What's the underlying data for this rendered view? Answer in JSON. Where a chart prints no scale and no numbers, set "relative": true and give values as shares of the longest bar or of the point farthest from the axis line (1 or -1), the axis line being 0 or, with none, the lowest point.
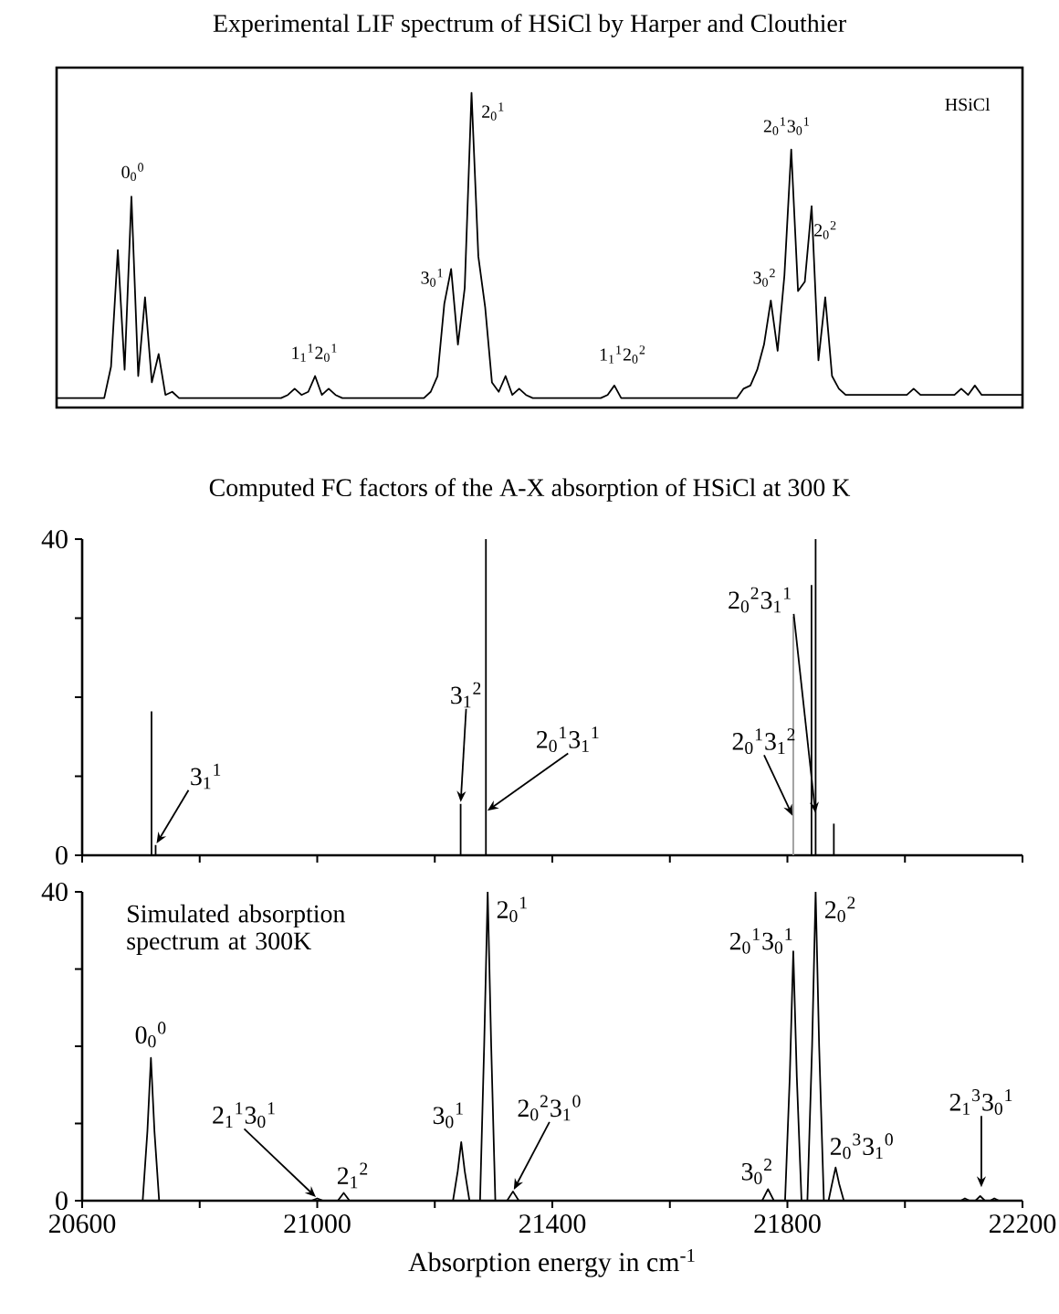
{
  "chart_data": [
    {
      "type": "line",
      "title": "Experimental LIF spectrum of HSiCl by Harper and Clouthier",
      "relative": true,
      "tick_labels": false,
      "color": "#000000",
      "categories": [
        null,
        null,
        null,
        null,
        null,
        null,
        null,
        null,
        null,
        null,
        null,
        null,
        null,
        null,
        null,
        null,
        null,
        null,
        null,
        null,
        null,
        null,
        null,
        null,
        null,
        null,
        null,
        null,
        null,
        null,
        null,
        null,
        null,
        null,
        null,
        null,
        null,
        null,
        null,
        null,
        null,
        null,
        null,
        null,
        null,
        null,
        null,
        null,
        null,
        null,
        null,
        null,
        null,
        null,
        null,
        null,
        null,
        null,
        null,
        null,
        null,
        null,
        null,
        null,
        null,
        null,
        null,
        null,
        null,
        null,
        null,
        null,
        null,
        null,
        null,
        null,
        null,
        null,
        null,
        null,
        null,
        null,
        null,
        null,
        null,
        null,
        null,
        null,
        null,
        null,
        null,
        null,
        null,
        null,
        null,
        null,
        null,
        null,
        null,
        null,
        null,
        null,
        null,
        null,
        null,
        null,
        null,
        null,
        null,
        null,
        null,
        null,
        null,
        null,
        null,
        null,
        null,
        null,
        null,
        null,
        null,
        null,
        null,
        null,
        null,
        null,
        null,
        null,
        null,
        null,
        null,
        null,
        null,
        null,
        null,
        null,
        null,
        null,
        null,
        null,
        null,
        null,
        null
      ],
      "values": [
        0.03,
        0.03,
        0.03,
        0.03,
        0.03,
        0.03,
        0.03,
        0.03,
        0.13,
        0.5,
        0.12,
        0.67,
        0.1,
        0.35,
        0.08,
        0.17,
        0.04,
        0.05,
        0.03,
        0.03,
        0.03,
        0.03,
        0.03,
        0.03,
        0.03,
        0.03,
        0.03,
        0.03,
        0.03,
        0.03,
        0.03,
        0.03,
        0.03,
        0.03,
        0.04,
        0.06,
        0.04,
        0.05,
        0.1,
        0.04,
        0.06,
        0.04,
        0.03,
        0.03,
        0.03,
        0.03,
        0.03,
        0.03,
        0.03,
        0.03,
        0.03,
        0.03,
        0.03,
        0.03,
        0.03,
        0.05,
        0.1,
        0.33,
        0.44,
        0.2,
        0.38,
        1,
        0.48,
        0.32,
        0.08,
        0.05,
        0.1,
        0.04,
        0.06,
        0.04,
        0.03,
        0.03,
        0.03,
        0.03,
        0.03,
        0.03,
        0.03,
        0.03,
        0.03,
        0.03,
        0.03,
        0.04,
        0.07,
        0.03,
        0.03,
        0.03,
        0.03,
        0.03,
        0.03,
        0.03,
        0.03,
        0.03,
        0.03,
        0.03,
        0.03,
        0.03,
        0.03,
        0.03,
        0.03,
        0.03,
        0.03,
        0.06,
        0.07,
        0.12,
        0.2,
        0.34,
        0.18,
        0.42,
        0.82,
        0.37,
        0.4,
        0.64,
        0.15,
        0.35,
        0.1,
        0.06,
        0.04,
        0.04,
        0.04,
        0.04,
        0.04,
        0.04,
        0.04,
        0.04,
        0.04,
        0.04,
        0.06,
        0.04,
        0.04,
        0.04,
        0.04,
        0.04,
        0.04,
        0.06,
        0.04,
        0.07,
        0.04,
        0.04,
        0.04,
        0.04,
        0.04,
        0.04,
        0.04
      ],
      "annotations": [
        "0$_{0}$$^{0}$",
        "1$_{1}$$^{1}$2$_{0}$$^{1}$",
        "3$_{0}$$^{1}$",
        "2$_{0}$$^{1}$",
        "1$_{1}$$^{1}$2$_{0}$$^{2}$",
        "3$_{0}$$^{2}$",
        "2$_{0}$$^{1}$3$_{0}$$^{1}$",
        "2$_{0}$$^{2}$",
        "HSiCl"
      ]
    },
    {
      "type": "bar",
      "title": "Computed FC factors of the A-X absorption of HSiCl at 300 K",
      "tick_labels": "y",
      "x": [
        20718,
        20725,
        21244,
        21287,
        21810,
        21841,
        21848,
        21879
      ],
      "values": [
        18.2,
        1.3,
        6.5,
        40,
        30.2,
        34.2,
        40,
        4.0
      ],
      "colors": [
        "#000000",
        "#000000",
        "#000000",
        "#000000",
        "#999999",
        "#000000",
        "#000000",
        "#000000"
      ],
      "xlim": [
        20600,
        22200
      ],
      "xticks": [
        {
          "value": 20600,
          "label": null
        },
        {
          "value": 20800,
          "label": null
        },
        {
          "value": 21000,
          "label": null
        },
        {
          "value": 21200,
          "label": null
        },
        {
          "value": 21400,
          "label": null
        },
        {
          "value": 21600,
          "label": null
        },
        {
          "value": 21800,
          "label": null
        },
        {
          "value": 22000,
          "label": null
        },
        {
          "value": 22200,
          "label": null
        }
      ],
      "ylim": [
        0,
        40
      ],
      "yticks": [
        0,
        {
          "value": 10,
          "label": null
        },
        {
          "value": 20,
          "label": null
        },
        {
          "value": 30,
          "label": null
        },
        40
      ],
      "annotations": [
        {
          "text": "3$_{1}$$^{1}$",
          "x": 20725,
          "y": 1.3
        },
        {
          "text": "3$_{1}$$^{2}$",
          "x": 21244,
          "y": 6.5
        },
        {
          "text": "2$_{0}$$^{1}$3$_{1}$$^{1}$",
          "x": 21287,
          "y": 5.5
        },
        {
          "text": "2$_{0}$$^{1}$3$_{1}$$^{2}$",
          "x": 21810,
          "y": 4.8
        },
        {
          "text": "2$_{0}$$^{2}$3$_{1}$$^{1}$",
          "x": 21848,
          "y": 5.1
        }
      ]
    },
    {
      "type": "line",
      "color": "#000000",
      "xlabel": "Absorption energy in cm$^{-1}$",
      "x": [
        20600,
        20703,
        20711,
        20717,
        20723,
        20731,
        20990,
        21000,
        21010,
        21035,
        21045,
        21055,
        21231,
        21239,
        21245,
        21251,
        21259,
        21277,
        21284,
        21290,
        21296,
        21303,
        21323,
        21333,
        21343,
        21757,
        21767,
        21777,
        21796,
        21804,
        21810,
        21816,
        21824,
        21834,
        21842,
        21848,
        21854,
        21862,
        21870,
        21876,
        21882,
        21888,
        21896,
        22095,
        22102,
        22110,
        22120,
        22128,
        22136,
        22145,
        22152,
        22160,
        22200
      ],
      "values": [
        0,
        0,
        9,
        18.5,
        9,
        0,
        0,
        0.3,
        0,
        0,
        1,
        0,
        0,
        3.8,
        7.6,
        3.8,
        0,
        0,
        20,
        40,
        20,
        0,
        0,
        1.2,
        0,
        0,
        1.5,
        0,
        0,
        16,
        32.3,
        16,
        0,
        0,
        20,
        40,
        20,
        0,
        0,
        2.2,
        4.3,
        2.2,
        0,
        0,
        0.3,
        0,
        0,
        0.6,
        0,
        0,
        0.3,
        0,
        0
      ],
      "xlim": [
        20600,
        22200
      ],
      "xticks": [
        20600,
        {
          "value": 20800,
          "label": null
        },
        21000,
        {
          "value": 21200,
          "label": null
        },
        21400,
        {
          "value": 21600,
          "label": null
        },
        21800,
        {
          "value": 22000,
          "label": null
        },
        22200
      ],
      "ylim": [
        0,
        40
      ],
      "yticks": [
        0,
        {
          "value": 10,
          "label": null
        },
        {
          "value": 20,
          "label": null
        },
        {
          "value": 30,
          "label": null
        },
        40
      ],
      "annotations": [
        "Simulated absorption spectrum at 300K",
        {
          "text": "0$_{0}$$^{0}$",
          "x": 20717,
          "y": 18.5
        },
        {
          "text": "2$_{1}$$^{1}$3$_{0}$$^{1}$",
          "x": 21000,
          "y": 0.3
        },
        {
          "text": "2$_{1}$$^{2}$",
          "x": 21045,
          "y": 1
        },
        {
          "text": "3$_{0}$$^{1}$",
          "x": 21245,
          "y": 7.6
        },
        {
          "text": "2$_{0}$$^{1}$",
          "x": 21290,
          "y": 40
        },
        {
          "text": "2$_{0}$$^{2}$3$_{1}$$^{0}$",
          "x": 21333,
          "y": 1.2
        },
        {
          "text": "3$_{0}$$^{2}$",
          "x": 21767,
          "y": 1.5
        },
        {
          "text": "2$_{0}$$^{1}$3$_{0}$$^{1}$",
          "x": 21810,
          "y": 32.3
        },
        {
          "text": "2$_{0}$$^{2}$",
          "x": 21848,
          "y": 40
        },
        {
          "text": "2$_{0}$$^{3}$3$_{1}$$^{0}$",
          "x": 21882,
          "y": 4.3
        },
        {
          "text": "2$_{1}$$^{3}$3$_{0}$$^{1}$",
          "x": 22130,
          "y": 1.5
        }
      ]
    }
  ]
}
